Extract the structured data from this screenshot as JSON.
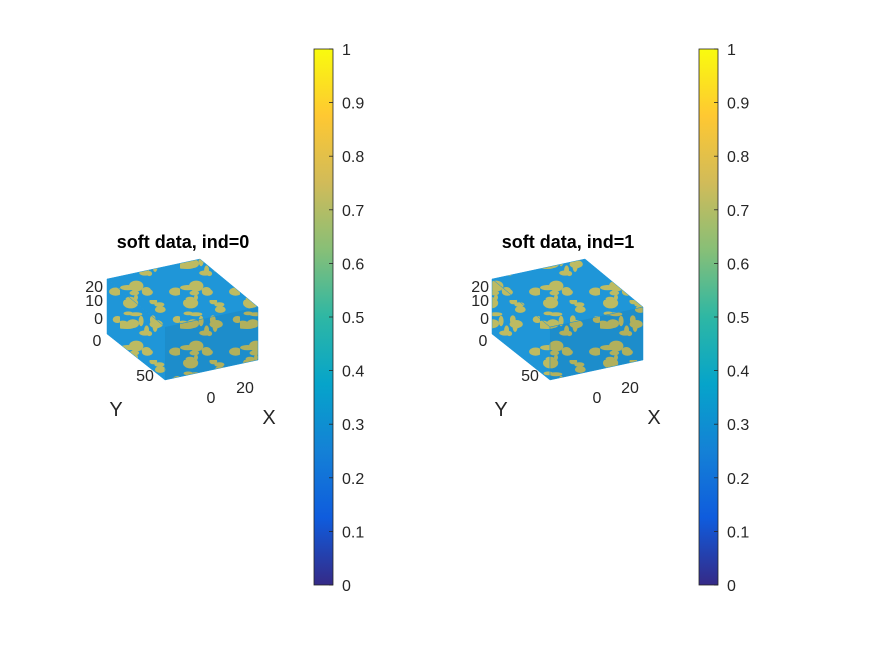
{
  "chart_data": [
    {
      "type": "voxel-3d",
      "title": "soft data, ind=0",
      "xlabel": "X",
      "ylabel": "Y",
      "x_ticks": [
        "0",
        "20"
      ],
      "y_ticks": [
        "0",
        "50"
      ],
      "z_ticks": [
        "0",
        "10",
        "20"
      ],
      "categories": [
        "0.3",
        "0.7"
      ],
      "colorbar": {
        "colormap": "parula",
        "range": [
          0,
          1
        ],
        "ticks": [
          "0",
          "0.1",
          "0.2",
          "0.3",
          "0.4",
          "0.5",
          "0.6",
          "0.7",
          "0.8",
          "0.9",
          "1"
        ]
      }
    },
    {
      "type": "voxel-3d",
      "title": "soft data, ind=1",
      "xlabel": "X",
      "ylabel": "Y",
      "x_ticks": [
        "0",
        "20"
      ],
      "y_ticks": [
        "0",
        "50"
      ],
      "z_ticks": [
        "0",
        "10",
        "20"
      ],
      "categories": [
        "0.3",
        "0.7"
      ],
      "colorbar": {
        "colormap": "parula",
        "range": [
          0,
          1
        ],
        "ticks": [
          "0",
          "0.1",
          "0.2",
          "0.3",
          "0.4",
          "0.5",
          "0.6",
          "0.7",
          "0.8",
          "0.9",
          "1"
        ]
      }
    }
  ],
  "colors": {
    "value_low": "#1f96d8",
    "value_high": "#bdbb62",
    "parula_stops": [
      "#352a87",
      "#0f5cdd",
      "#1481d6",
      "#06a4ca",
      "#2eb7a4",
      "#87bf77",
      "#d1bb59",
      "#fec832",
      "#f9fb0e"
    ]
  }
}
